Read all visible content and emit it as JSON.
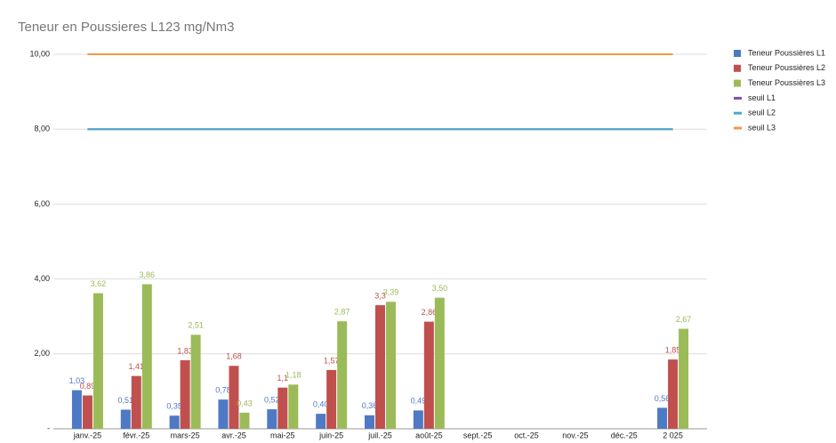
{
  "chart_data": {
    "type": "bar",
    "title": "Teneur en Poussieres L123 mg/Nm3",
    "categories": [
      "janv.-25",
      "févr.-25",
      "mars-25",
      "avr.-25",
      "mai-25",
      "juin-25",
      "juil.-25",
      "août-25",
      "sept.-25",
      "oct.-25",
      "nov.-25",
      "déc.-25",
      "2 025"
    ],
    "series": [
      {
        "name": "Teneur Poussières L1",
        "color": "#4e79c4",
        "type": "bar",
        "values": [
          1.03,
          0.51,
          0.35,
          0.78,
          0.52,
          0.4,
          0.36,
          0.49,
          null,
          null,
          null,
          null,
          0.56
        ],
        "value_labels": [
          "1,03",
          "0,51",
          "0,35",
          "0,78",
          "0,52",
          "0,40",
          "0,36",
          "0,49",
          null,
          null,
          null,
          null,
          "0,56"
        ]
      },
      {
        "name": "Teneur Poussières L2",
        "color": "#c0504d",
        "type": "bar",
        "values": [
          0.89,
          1.41,
          1.83,
          1.68,
          1.1,
          1.57,
          3.3,
          2.86,
          null,
          null,
          null,
          null,
          1.85
        ],
        "value_labels": [
          "0,89",
          "1,41",
          "1,83",
          "1,68",
          "1,1",
          "1,57",
          "3,3",
          "2,86",
          null,
          null,
          null,
          null,
          "1,85"
        ]
      },
      {
        "name": "Teneur Poussières L3",
        "color": "#9bbb59",
        "type": "bar",
        "values": [
          3.62,
          3.86,
          2.51,
          0.43,
          1.18,
          2.87,
          3.39,
          3.5,
          null,
          null,
          null,
          null,
          2.67
        ],
        "value_labels": [
          "3,62",
          "3,86",
          "2,51",
          "0,43",
          "1,18",
          "2,87",
          "3,39",
          "3,50",
          null,
          null,
          null,
          null,
          "2,67"
        ]
      },
      {
        "name": "seuil L1",
        "color": "#7f4fa8",
        "type": "line",
        "values": [
          8,
          8,
          8,
          8,
          8,
          8,
          8,
          8,
          8,
          8,
          8,
          8,
          8
        ]
      },
      {
        "name": "seuil L2",
        "color": "#4bacc6",
        "type": "line",
        "values": [
          8,
          8,
          8,
          8,
          8,
          8,
          8,
          8,
          8,
          8,
          8,
          8,
          8
        ]
      },
      {
        "name": "seuil L3",
        "color": "#f79646",
        "type": "line",
        "values": [
          10,
          10,
          10,
          10,
          10,
          10,
          10,
          10,
          10,
          10,
          10,
          10,
          10
        ]
      }
    ],
    "ylim": [
      0,
      10.25
    ],
    "yticks": [
      {
        "value": 0,
        "label": "-"
      },
      {
        "value": 2,
        "label": "2,00"
      },
      {
        "value": 4,
        "label": "4,00"
      },
      {
        "value": 6,
        "label": "6,00"
      },
      {
        "value": 8,
        "label": "8,00"
      },
      {
        "value": 10,
        "label": "10,00"
      }
    ],
    "grid": true
  }
}
